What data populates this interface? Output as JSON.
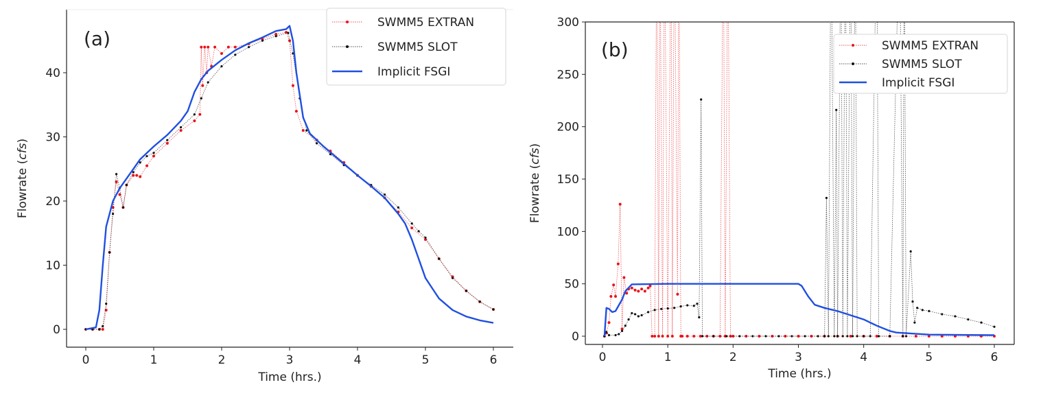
{
  "chart_data": [
    {
      "type": "line",
      "panel_label": "(a)",
      "xlabel": "Time (hrs.)",
      "ylabel_parts": [
        "Flowrate (",
        "cfs",
        ")"
      ],
      "xlim": [
        -0.2,
        6.25
      ],
      "ylim": [
        -2,
        48.5
      ],
      "xticks": [
        0,
        1,
        2,
        3,
        4,
        5,
        6
      ],
      "yticks": [
        0,
        10,
        20,
        30,
        40
      ],
      "grid": false,
      "legend": "top-right",
      "series": [
        {
          "name": "SWMM5 EXTRAN",
          "color": "#e8141a",
          "style": "dotted-markers",
          "x": [
            0,
            0.1,
            0.2,
            0.25,
            0.3,
            0.35,
            0.4,
            0.45,
            0.5,
            0.55,
            0.6,
            0.7,
            0.75,
            0.8,
            0.9,
            1,
            1.2,
            1.4,
            1.6,
            1.68,
            1.7,
            1.72,
            1.75,
            1.78,
            1.8,
            1.85,
            1.9,
            2.0,
            2.1,
            2.2,
            2.4,
            2.6,
            2.8,
            2.95,
            3.0,
            3.05,
            3.1,
            3.2,
            3.4,
            3.6,
            3.8,
            4,
            4.2,
            4.4,
            4.6,
            4.8,
            5,
            5.2,
            5.4,
            5.6,
            5.8,
            6
          ],
          "y": [
            0,
            0,
            0,
            0,
            3,
            12,
            19,
            23,
            21,
            19,
            22.5,
            24,
            24,
            23.8,
            25.5,
            27,
            29,
            31,
            32.5,
            33.5,
            44,
            38,
            44,
            40,
            44,
            41,
            44,
            43,
            44,
            44,
            44.5,
            45.3,
            46,
            46.3,
            45,
            38,
            34,
            31,
            29.5,
            27.8,
            26,
            24,
            22.3,
            20.5,
            18.3,
            15.8,
            14,
            11,
            8.2,
            6,
            4.3,
            3.1
          ]
        },
        {
          "name": "SWMM5 SLOT",
          "color": "#111111",
          "style": "dotted-markers",
          "x": [
            0,
            0.1,
            0.2,
            0.25,
            0.3,
            0.35,
            0.4,
            0.45,
            0.5,
            0.55,
            0.6,
            0.7,
            0.8,
            0.9,
            1,
            1.2,
            1.4,
            1.6,
            1.7,
            1.8,
            2,
            2.2,
            2.4,
            2.6,
            2.8,
            2.98,
            3.05,
            3.15,
            3.25,
            3.4,
            3.6,
            3.8,
            4,
            4.2,
            4.4,
            4.6,
            4.8,
            4.9,
            5,
            5.2,
            5.4,
            5.6,
            5.8,
            6
          ],
          "y": [
            0,
            0,
            0,
            0.5,
            4,
            12,
            18,
            24.2,
            22,
            19,
            22.5,
            24.5,
            26,
            27,
            27.5,
            29.5,
            31.5,
            33.5,
            36,
            38.5,
            41,
            42.8,
            44,
            45,
            45.7,
            46.2,
            43,
            36,
            31,
            29,
            27.3,
            25.6,
            24,
            22.5,
            21,
            19,
            16.5,
            15.3,
            14.3,
            11,
            8,
            6,
            4.3,
            3.1
          ]
        },
        {
          "name": "Implicit FSGI",
          "color": "#1f4fe0",
          "style": "solid",
          "x": [
            0,
            0.15,
            0.2,
            0.25,
            0.3,
            0.4,
            0.5,
            0.7,
            0.8,
            1,
            1.2,
            1.4,
            1.5,
            1.6,
            1.7,
            1.8,
            2,
            2.2,
            2.4,
            2.6,
            2.8,
            2.95,
            3.0,
            3.05,
            3.1,
            3.2,
            3.3,
            3.5,
            3.8,
            4,
            4.2,
            4.4,
            4.6,
            4.7,
            4.8,
            4.9,
            5,
            5.2,
            5.4,
            5.6,
            5.8,
            6
          ],
          "y": [
            0,
            0.3,
            3,
            10,
            16,
            20,
            22,
            25,
            26.5,
            28.5,
            30.3,
            32.5,
            34,
            37,
            39,
            40.3,
            42,
            43.5,
            44.6,
            45.5,
            46.5,
            46.8,
            47.3,
            45,
            40,
            33,
            30.5,
            28.5,
            25.8,
            24,
            22.3,
            20.5,
            18,
            16.5,
            14,
            11,
            8,
            4.8,
            3,
            2,
            1.4,
            1.0
          ]
        }
      ]
    },
    {
      "type": "line",
      "panel_label": "(b)",
      "xlabel": "Time (hrs.)",
      "ylabel_parts": [
        "Flowrate (",
        "cfs",
        ")"
      ],
      "xlim": [
        -0.27,
        6.3
      ],
      "ylim": [
        -5,
        300
      ],
      "xticks": [
        0,
        1,
        2,
        3,
        4,
        5,
        6
      ],
      "yticks": [
        0,
        50,
        100,
        150,
        200,
        250,
        300
      ],
      "grid": false,
      "legend": "top-right",
      "series": [
        {
          "name": "SWMM5 EXTRAN",
          "color": "#e8141a",
          "style": "dotted-markers",
          "x": [
            0.03,
            0.06,
            0.1,
            0.13,
            0.17,
            0.2,
            0.24,
            0.27,
            0.3,
            0.33,
            0.37,
            0.4,
            0.45,
            0.5,
            0.55,
            0.6,
            0.65,
            0.7,
            0.73,
            0.76,
            0.8,
            0.83,
            0.86,
            0.88,
            0.92,
            0.95,
            1.0,
            1.05,
            1.07,
            1.1,
            1.15,
            1.17,
            1.2,
            1.22,
            1.3,
            1.4,
            1.5,
            1.6,
            1.7,
            1.8,
            1.85,
            1.88,
            1.92,
            1.96,
            2.0,
            2.2,
            2.4,
            2.6,
            2.8,
            3.0,
            3.2,
            3.4,
            3.6,
            3.8,
            4.0,
            4.2,
            4.4,
            4.6,
            4.8,
            5.0,
            5.2,
            5.4,
            5.6,
            5.8,
            6.0
          ],
          "y": [
            0,
            3,
            13,
            38,
            49,
            38,
            69,
            126,
            7,
            56,
            41,
            45,
            46,
            44,
            43,
            45,
            43,
            46,
            48,
            0,
            0,
            400,
            0,
            400,
            0,
            400,
            0,
            400,
            0,
            400,
            40,
            400,
            0,
            0,
            0,
            0,
            0,
            0,
            0,
            0,
            400,
            0,
            400,
            0,
            0,
            0,
            0,
            0,
            0,
            0,
            0,
            0,
            0,
            0,
            0,
            0,
            0,
            0,
            0,
            0,
            0,
            0,
            0,
            0,
            0
          ]
        },
        {
          "name": "SWMM5 SLOT",
          "color": "#111111",
          "style": "dotted-markers",
          "x": [
            0.03,
            0.06,
            0.1,
            0.2,
            0.25,
            0.3,
            0.35,
            0.4,
            0.45,
            0.5,
            0.55,
            0.6,
            0.7,
            0.8,
            0.9,
            1,
            1.1,
            1.2,
            1.3,
            1.4,
            1.45,
            1.48,
            1.51,
            1.53,
            1.7,
            1.9,
            2.1,
            2.3,
            2.5,
            2.7,
            2.9,
            3.1,
            3.3,
            3.4,
            3.43,
            3.46,
            3.5,
            3.55,
            3.58,
            3.6,
            3.65,
            3.68,
            3.72,
            3.75,
            3.8,
            3.83,
            3.87,
            3.9,
            4.0,
            4.1,
            4.2,
            4.23,
            4.4,
            4.55,
            4.6,
            4.62,
            4.65,
            4.72,
            4.75,
            4.78,
            4.82,
            4.9,
            5,
            5.2,
            5.4,
            5.6,
            5.8,
            6
          ],
          "y": [
            0,
            4,
            1,
            1,
            2,
            5,
            10,
            16,
            22,
            21,
            19,
            20,
            23,
            25,
            26,
            26.5,
            27,
            28.5,
            29.5,
            29,
            31,
            18,
            226,
            0,
            0,
            0,
            0,
            0,
            0,
            0,
            0,
            0,
            0,
            0,
            132,
            0,
            400,
            0,
            216,
            0,
            400,
            0,
            400,
            0,
            400,
            0,
            400,
            0,
            0,
            0,
            400,
            0,
            0,
            400,
            0,
            400,
            0,
            81,
            33,
            13,
            27,
            25,
            24,
            21,
            19,
            16,
            13,
            9
          ]
        },
        {
          "name": "Implicit FSGI",
          "color": "#1f4fe0",
          "style": "solid",
          "x": [
            0.03,
            0.06,
            0.1,
            0.15,
            0.2,
            0.3,
            0.35,
            0.45,
            1,
            2,
            3,
            3.05,
            3.15,
            3.25,
            3.4,
            3.6,
            3.8,
            4,
            4.2,
            4.4,
            4.5,
            5,
            6
          ],
          "y": [
            0,
            27,
            26,
            23,
            24,
            35,
            43,
            49.5,
            50,
            50,
            50,
            48,
            38,
            30,
            27,
            24,
            20,
            16,
            10,
            5,
            3.5,
            1.5,
            1
          ]
        }
      ]
    }
  ]
}
